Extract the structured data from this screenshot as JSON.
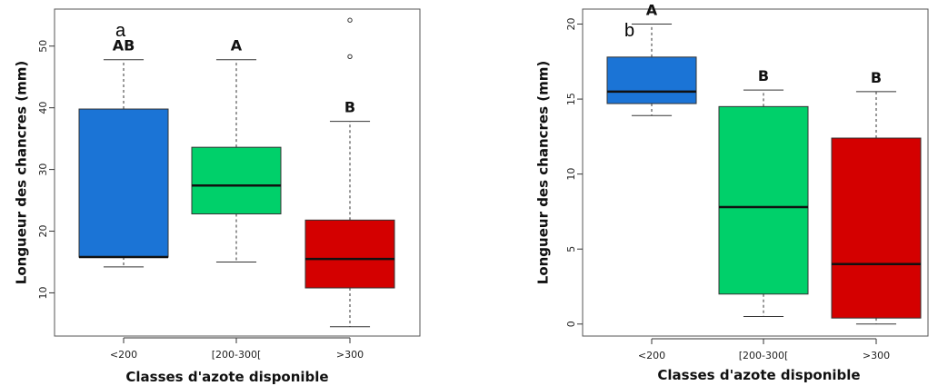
{
  "chart_data": [
    {
      "type": "box",
      "panel_label": "a",
      "xlabel": "Classes d'azote disponible",
      "ylabel": "Longueur des chancres (mm)",
      "ylim": [
        3,
        56
      ],
      "yticks": [
        10,
        20,
        30,
        40,
        50
      ],
      "categories": [
        "<200",
        "[200-300[",
        ">300"
      ],
      "boxes": [
        {
          "min": 14.2,
          "q1": 15.8,
          "median": 15.8,
          "q3": 39.8,
          "max": 47.8,
          "outliers": [],
          "letter": "AB",
          "color": "#1b74d6"
        },
        {
          "min": 15.0,
          "q1": 22.8,
          "median": 27.4,
          "q3": 33.6,
          "max": 47.8,
          "outliers": [],
          "letter": "A",
          "color": "#00d06a"
        },
        {
          "min": 4.5,
          "q1": 10.8,
          "median": 15.5,
          "q3": 21.8,
          "max": 37.8,
          "outliers": [
            48.3,
            54.2
          ],
          "letter": "B",
          "color": "#d40000"
        }
      ]
    },
    {
      "type": "box",
      "panel_label": "b",
      "xlabel": "Classes d'azote disponible",
      "ylabel": "Longueur des chancres (mm)",
      "ylim": [
        -0.8,
        21
      ],
      "yticks": [
        0,
        5,
        10,
        15,
        20
      ],
      "categories": [
        "<200",
        "[200-300[",
        ">300"
      ],
      "boxes": [
        {
          "min": 13.9,
          "q1": 14.7,
          "median": 15.5,
          "q3": 17.8,
          "max": 20.0,
          "outliers": [],
          "letter": "A",
          "color": "#1b74d6"
        },
        {
          "min": 0.5,
          "q1": 2.0,
          "median": 7.8,
          "q3": 14.5,
          "max": 15.6,
          "outliers": [],
          "letter": "B",
          "color": "#00d06a"
        },
        {
          "min": 0.0,
          "q1": 0.4,
          "median": 4.0,
          "q3": 12.4,
          "max": 15.5,
          "outliers": [],
          "letter": "B",
          "color": "#d40000"
        }
      ]
    }
  ]
}
